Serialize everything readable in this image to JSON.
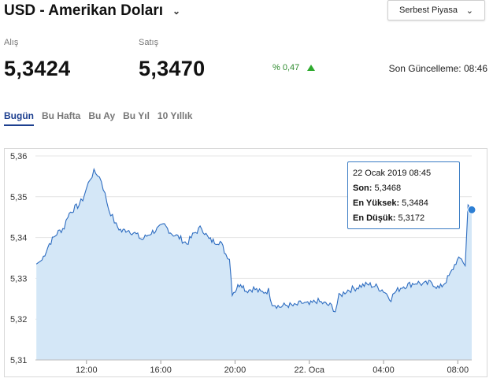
{
  "header": {
    "title": "USD - Amerikan Doları",
    "market_select": "Serbest Piyasa"
  },
  "quote": {
    "buy_label": "Alış",
    "buy_value": "5,3424",
    "sell_label": "Satış",
    "sell_value": "5,3470",
    "change": "% 0,47",
    "updated": "Son Güncelleme: 08:46"
  },
  "tabs": [
    {
      "label": "Bugün",
      "active": true
    },
    {
      "label": "Bu Hafta"
    },
    {
      "label": "Bu Ay"
    },
    {
      "label": "Bu Yıl"
    },
    {
      "label": "10 Yıllık"
    }
  ],
  "tooltip": {
    "date": "22 Ocak 2019 08:45",
    "last_label": "Son:",
    "last_value": "5,3468",
    "high_label": "En Yüksek:",
    "high_value": "5,3484",
    "low_label": "En Düşük:",
    "low_value": "5,3172"
  },
  "colors": {
    "line": "#2d6cc0",
    "fill": "#d4e7f7",
    "tab_active": "#1d3f8f",
    "up": "#2eaa2e"
  },
  "chart_data": {
    "type": "area",
    "x_ticks": [
      "12:00",
      "16:00",
      "20:00",
      "22. Oca",
      "04:00",
      "08:00"
    ],
    "y_ticks": [
      "5,36",
      "5,35",
      "5,34",
      "5,33",
      "5,32",
      "5,31"
    ],
    "ylim": [
      5.31,
      5.36
    ],
    "x_unit_hours_start": 9.25,
    "x_unit_hours_end": 32.75,
    "points": [
      [
        9.3,
        5.3335
      ],
      [
        9.6,
        5.3345
      ],
      [
        10.0,
        5.3385
      ],
      [
        10.4,
        5.341
      ],
      [
        10.8,
        5.3425
      ],
      [
        11.0,
        5.3455
      ],
      [
        11.3,
        5.347
      ],
      [
        11.6,
        5.348
      ],
      [
        11.8,
        5.3495
      ],
      [
        12.0,
        5.352
      ],
      [
        12.2,
        5.3545
      ],
      [
        12.4,
        5.356
      ],
      [
        12.6,
        5.3555
      ],
      [
        12.8,
        5.354
      ],
      [
        13.0,
        5.3505
      ],
      [
        13.2,
        5.347
      ],
      [
        13.4,
        5.345
      ],
      [
        13.6,
        5.343
      ],
      [
        13.9,
        5.3415
      ],
      [
        14.2,
        5.342
      ],
      [
        14.6,
        5.341
      ],
      [
        15.0,
        5.3395
      ],
      [
        15.4,
        5.341
      ],
      [
        15.8,
        5.342
      ],
      [
        16.2,
        5.343
      ],
      [
        16.6,
        5.341
      ],
      [
        17.0,
        5.34
      ],
      [
        17.4,
        5.3385
      ],
      [
        17.8,
        5.341
      ],
      [
        18.2,
        5.3425
      ],
      [
        18.6,
        5.3395
      ],
      [
        18.9,
        5.339
      ],
      [
        19.2,
        5.339
      ],
      [
        19.5,
        5.336
      ],
      [
        19.7,
        5.335
      ],
      [
        19.85,
        5.3265
      ],
      [
        20.0,
        5.327
      ],
      [
        20.3,
        5.329
      ],
      [
        20.6,
        5.327
      ],
      [
        21.0,
        5.3275
      ],
      [
        21.4,
        5.3265
      ],
      [
        21.8,
        5.327
      ],
      [
        22.0,
        5.324
      ],
      [
        22.4,
        5.323
      ],
      [
        22.8,
        5.3235
      ],
      [
        23.2,
        5.3232
      ],
      [
        23.6,
        5.324
      ],
      [
        24.0,
        5.3235
      ],
      [
        24.4,
        5.3245
      ],
      [
        24.8,
        5.3238
      ],
      [
        25.2,
        5.3232
      ],
      [
        25.4,
        5.322
      ],
      [
        25.6,
        5.3255
      ],
      [
        26.0,
        5.327
      ],
      [
        26.4,
        5.3275
      ],
      [
        26.8,
        5.3282
      ],
      [
        27.2,
        5.3285
      ],
      [
        27.6,
        5.328
      ],
      [
        28.0,
        5.327
      ],
      [
        28.4,
        5.325
      ],
      [
        28.6,
        5.3265
      ],
      [
        29.0,
        5.328
      ],
      [
        29.4,
        5.3285
      ],
      [
        29.8,
        5.329
      ],
      [
        30.2,
        5.3285
      ],
      [
        30.6,
        5.329
      ],
      [
        31.0,
        5.3275
      ],
      [
        31.3,
        5.329
      ],
      [
        31.6,
        5.331
      ],
      [
        31.9,
        5.334
      ],
      [
        32.2,
        5.335
      ],
      [
        32.4,
        5.333
      ],
      [
        32.55,
        5.348
      ],
      [
        32.75,
        5.3468
      ]
    ]
  }
}
